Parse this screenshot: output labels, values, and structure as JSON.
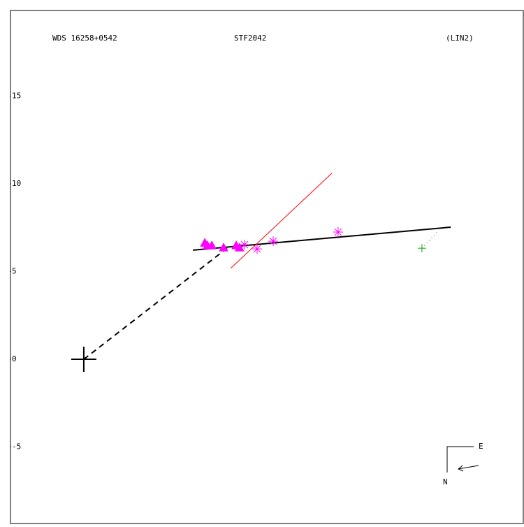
{
  "chart_data": {
    "type": "scatter",
    "title_left": "WDS 16258+0542",
    "title": "STF2042",
    "title_right": "(LIN2)",
    "compass_east": "E",
    "compass_north": "N",
    "xlim": [
      -4.18,
      25.1
    ],
    "ylim": [
      -9.4,
      19.88
    ],
    "yticks": [
      15,
      10,
      5,
      0,
      -5
    ],
    "grid": false,
    "series": [
      {
        "color": "#ff00ff",
        "marker": "triangle",
        "x": [
          6.9,
          7.05,
          7.3,
          7.97,
          8.69,
          8.88
        ],
        "values": [
          6.6,
          6.45,
          6.45,
          6.33,
          6.45,
          6.33
        ]
      },
      {
        "color": "#ff00ff",
        "marker": "asterisk",
        "x": [
          9.16,
          9.88,
          10.8,
          14.5
        ],
        "values": [
          6.53,
          6.29,
          6.73,
          7.25
        ]
      },
      {
        "color": "#00aa00",
        "marker": "plus",
        "x": [
          19.28
        ],
        "values": [
          6.33
        ]
      }
    ],
    "lines": [
      {
        "color": "#000000",
        "dash": "solid",
        "width": 2,
        "x": [
          6.22,
          20.92
        ],
        "values": [
          6.22,
          7.53
        ]
      },
      {
        "color": "#000000",
        "dash": "dashed",
        "width": 2,
        "x": [
          0,
          8.17
        ],
        "values": [
          0,
          6.33
        ]
      },
      {
        "color": "#ff0000",
        "dash": "solid",
        "width": 1,
        "x": [
          8.37,
          14.14
        ],
        "values": [
          5.18,
          10.6
        ]
      },
      {
        "color": "#00aa00",
        "dash": "dotted",
        "width": 1,
        "x": [
          19.28,
          20.2
        ],
        "values": [
          6.33,
          7.3
        ]
      }
    ],
    "primary": {
      "x": 0,
      "value": 0
    }
  }
}
